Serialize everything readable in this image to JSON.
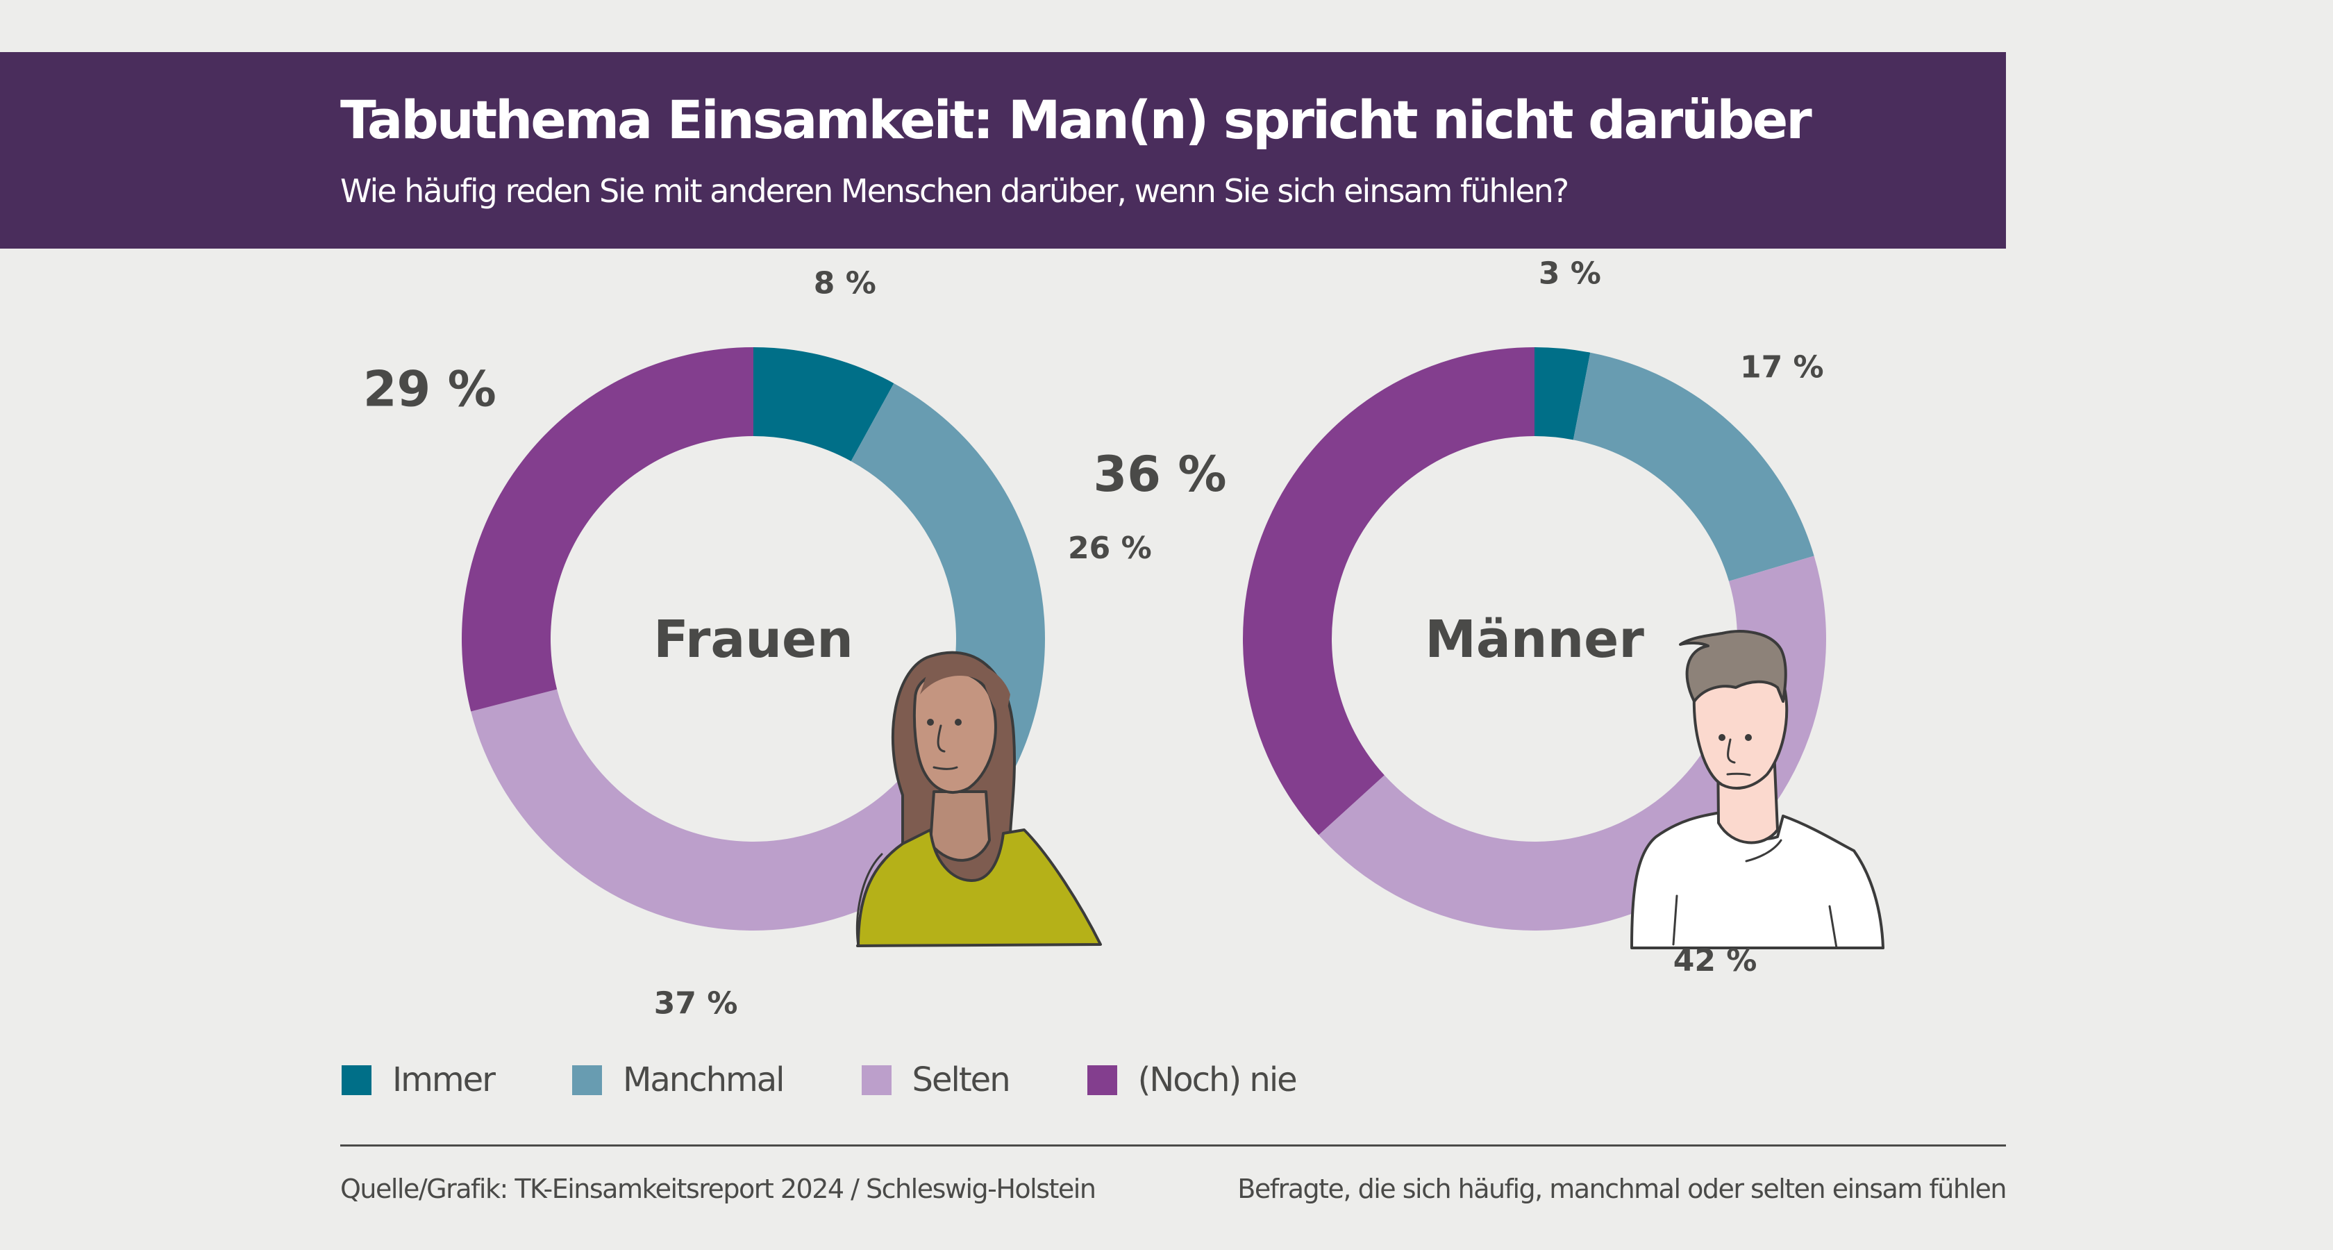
{
  "header": {
    "title": "Tabuthema Einsamkeit: Man(n) spricht nicht darüber",
    "subtitle": "Wie häufig reden Sie mit anderen Menschen darüber, wenn Sie sich einsam fühlen?",
    "background_color": "#4a2d5c"
  },
  "chart_data": [
    {
      "type": "pie",
      "variant": "donut",
      "title": "Frauen",
      "categories": [
        "Immer",
        "Manchmal",
        "Selten",
        "(Noch) nie"
      ],
      "values": [
        8,
        26,
        37,
        29
      ],
      "labels": [
        "8 %",
        "26 %",
        "37 %",
        "29 %"
      ],
      "unit": "%",
      "highlight": "(Noch) nie",
      "colors": [
        "#006f88",
        "#689cb1",
        "#bc9fcb",
        "#833e8e"
      ]
    },
    {
      "type": "pie",
      "variant": "donut",
      "title": "Männer",
      "categories": [
        "Immer",
        "Manchmal",
        "Selten",
        "(Noch) nie"
      ],
      "values": [
        3,
        17,
        42,
        36
      ],
      "labels": [
        "3 %",
        "17 %",
        "42 %",
        "36 %"
      ],
      "unit": "%",
      "highlight": "(Noch) nie",
      "colors": [
        "#006f88",
        "#689cb1",
        "#bc9fcb",
        "#833e8e"
      ]
    }
  ],
  "legend": {
    "position": "bottom-left",
    "items": [
      {
        "label": "Immer",
        "color": "#006f88"
      },
      {
        "label": "Manchmal",
        "color": "#689cb1"
      },
      {
        "label": "Selten",
        "color": "#bc9fcb"
      },
      {
        "label": "(Noch) nie",
        "color": "#833e8e"
      }
    ]
  },
  "illustrations": [
    {
      "name": "woman-illustration",
      "shirt_color": "#b5b118",
      "hair_color": "#7e5c50",
      "skin_color": "#c49580"
    },
    {
      "name": "man-illustration",
      "shirt_color": "#ffffff",
      "hair_color": "#8d8279",
      "skin_color": "#fbd9ce"
    }
  ],
  "footer": {
    "source": "Quelle/Grafik: TK-Einsamkeitsreport 2024 / Schleswig-Holstein",
    "note": "Befragte, die sich häufig, manchmal oder selten einsam fühlen"
  }
}
